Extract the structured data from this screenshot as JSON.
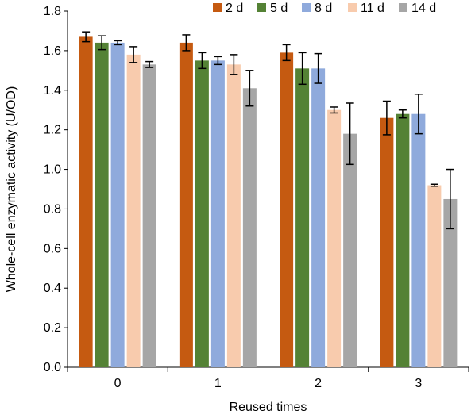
{
  "chart_data": {
    "type": "bar",
    "xlabel": "Reused times",
    "ylabel": "Whole-cell enzymatic activity (U/OD)",
    "categories": [
      "0",
      "1",
      "2",
      "3"
    ],
    "ylim": [
      0.0,
      1.8
    ],
    "yticks": [
      "0.0",
      "0.2",
      "0.4",
      "0.6",
      "0.8",
      "1.0",
      "1.2",
      "1.4",
      "1.6",
      "1.8"
    ],
    "grid": false,
    "legend_position": "top-right",
    "error_bars": true,
    "series": [
      {
        "name": "2 d",
        "color": "#c55a11",
        "values": [
          1.67,
          1.64,
          1.59,
          1.26
        ],
        "errors": [
          0.025,
          0.04,
          0.04,
          0.085
        ]
      },
      {
        "name": "5 d",
        "color": "#548235",
        "values": [
          1.64,
          1.55,
          1.51,
          1.28
        ],
        "errors": [
          0.035,
          0.04,
          0.08,
          0.02
        ]
      },
      {
        "name": "8 d",
        "color": "#8faadc",
        "values": [
          1.64,
          1.55,
          1.51,
          1.28
        ],
        "errors": [
          0.01,
          0.02,
          0.075,
          0.1
        ]
      },
      {
        "name": "11 d",
        "color": "#f8cbad",
        "values": [
          1.58,
          1.53,
          1.3,
          0.92
        ],
        "errors": [
          0.04,
          0.05,
          0.015,
          0.005
        ]
      },
      {
        "name": "14 d",
        "color": "#a6a6a6",
        "values": [
          1.53,
          1.41,
          1.18,
          0.85
        ],
        "errors": [
          0.015,
          0.09,
          0.155,
          0.15
        ]
      }
    ]
  }
}
